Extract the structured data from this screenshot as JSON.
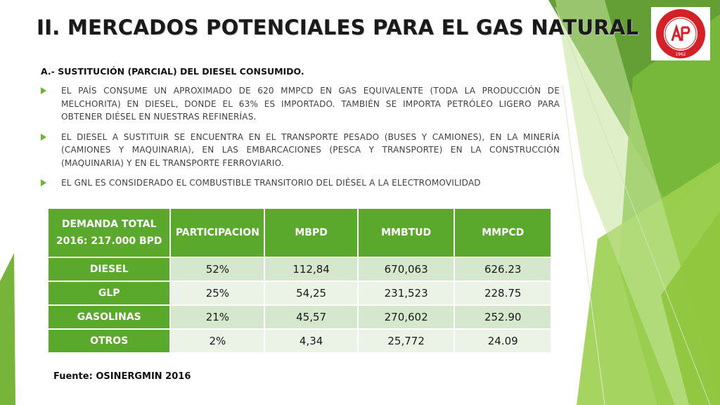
{
  "slide": {
    "title": "II. MERCADOS POTENCIALES PARA EL GAS NATURAL",
    "subheading": "A.- SUSTITUCIÓN (PARCIAL) DEL DIESEL CONSUMIDO.",
    "bullets": [
      "EL PAÍS CONSUME UN APROXIMADO DE 620 MMPCD EN GAS EQUIVALENTE (TODA LA PRODUCCIÓN DE MELCHORITA) EN DIESEL, DONDE EL 63% ES IMPORTADO. TAMBIÉN SE IMPORTA PETRÓLEO LIGERO PARA OBTENER DIÉSEL EN NUESTRAS REFINERÍAS.",
      "EL DIESEL A SUSTITUIR SE ENCUENTRA EN EL TRANSPORTE PESADO (BUSES Y CAMIONES), EN LA MINERÍA (CAMIONES Y MAQUINARIA), EN LAS EMBARCACIONES (PESCA Y TRANSPORTE) EN LA CONSTRUCCIÓN (MAQUINARIA) Y EN EL TRANSPORTE FERROVIARIO.",
      "EL GNL ES CONSIDERADO EL COMBUSTIBLE TRANSITORIO DEL DIÉSEL A LA ELECTROMOVILIDAD"
    ],
    "source": "Fuente: OSINERGMIN 2016",
    "logo": {
      "icon": "college-seal-icon",
      "text": "COLEGIO DE INGENIEROS DEL PERÚ",
      "year": "1962",
      "initials": "CIP"
    }
  },
  "table": {
    "headers": [
      [
        "DEMANDA TOTAL",
        "2016: 217.000 BPD"
      ],
      [
        "PARTICIPACION"
      ],
      [
        "MBPD"
      ],
      [
        "MMBTUD"
      ],
      [
        "MMPCD"
      ]
    ],
    "rows": [
      [
        "DIESEL",
        "52%",
        "112,84",
        "670,063",
        "626.23"
      ],
      [
        "GLP",
        "25%",
        "54,25",
        "231,523",
        "228.75"
      ],
      [
        "GASOLINAS",
        "21%",
        "45,57",
        "270,602",
        "252.90"
      ],
      [
        "OTROS",
        "2%",
        "4,34",
        "25,772",
        "24.09"
      ]
    ]
  },
  "colors": {
    "accent_green": "#5aa82c",
    "row_shade_dark": "#d5e7cc",
    "row_shade_light": "#eaf3e6",
    "bullet_arrow": "#6cb52d",
    "seal_red": "#d62027"
  }
}
